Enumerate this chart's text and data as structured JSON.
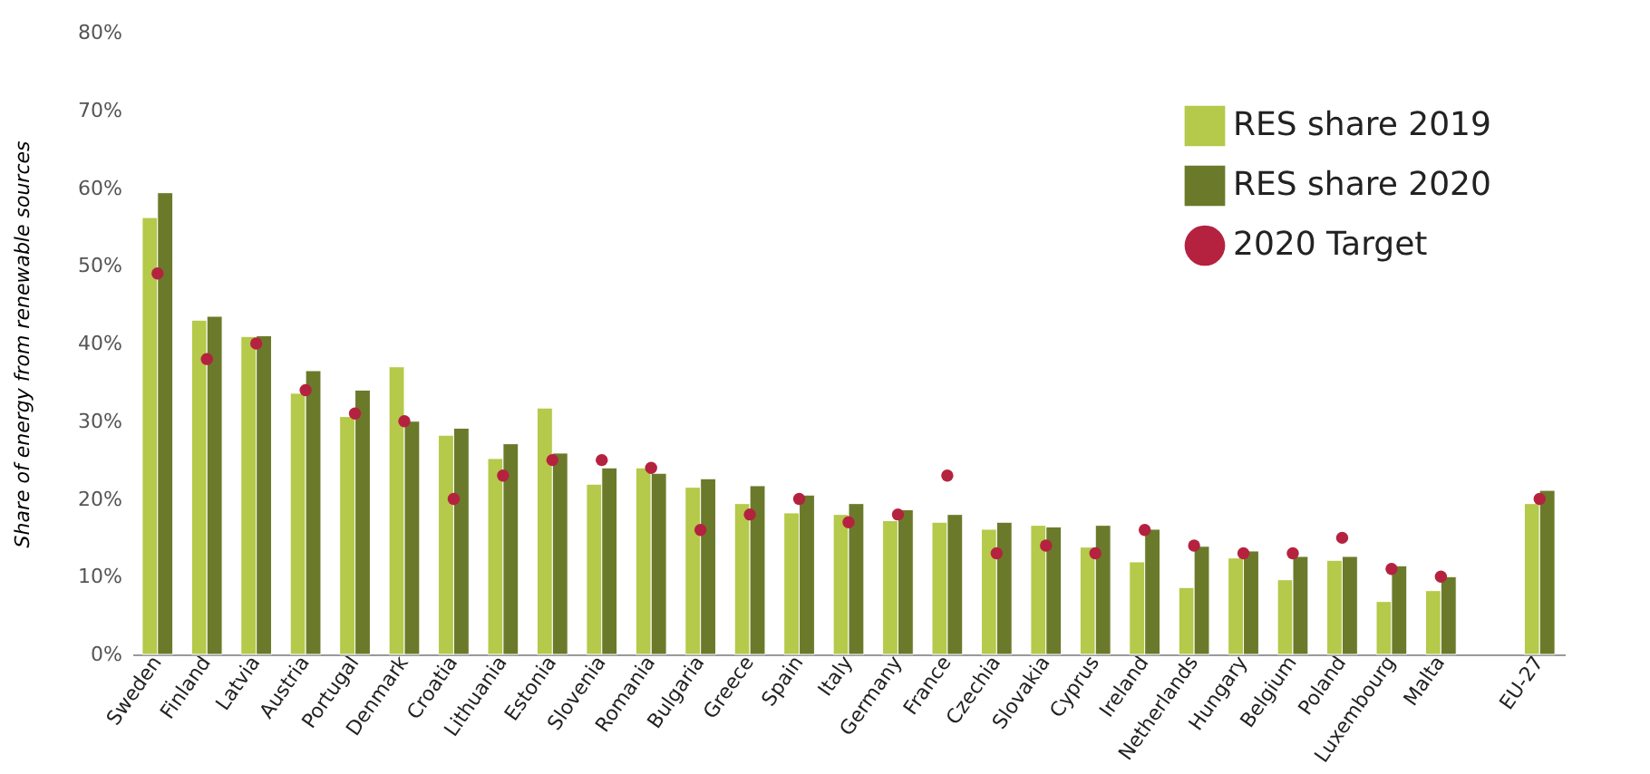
{
  "chart_data": {
    "type": "bar",
    "ylabel": "Share of energy from renewable sources",
    "categories": [
      "Sweden",
      "Finland",
      "Latvia",
      "Austria",
      "Portugal",
      "Denmark",
      "Croatia",
      "Lithuania",
      "Estonia",
      "Slovenia",
      "Romania",
      "Bulgaria",
      "Greece",
      "Spain",
      "Italy",
      "Germany",
      "France",
      "Czechia",
      "Slovakia",
      "Cyprus",
      "Ireland",
      "Netherlands",
      "Hungary",
      "Belgium",
      "Poland",
      "Luxembourg",
      "Malta",
      null,
      "EU-27"
    ],
    "series": [
      {
        "name": "RES share 2019",
        "color": "#b5c94a",
        "values": [
          56.2,
          43.0,
          40.9,
          33.6,
          30.6,
          37.0,
          28.2,
          25.2,
          31.7,
          21.9,
          24.0,
          21.5,
          19.4,
          18.2,
          18.0,
          17.2,
          17.0,
          16.1,
          16.6,
          13.8,
          11.9,
          8.6,
          12.4,
          9.6,
          12.1,
          6.8,
          8.2,
          null,
          19.4
        ]
      },
      {
        "name": "RES share 2020",
        "color": "#6b7a2a",
        "values": [
          59.4,
          43.5,
          41.0,
          36.5,
          34.0,
          30.0,
          29.1,
          27.1,
          25.9,
          24.0,
          23.3,
          22.6,
          21.7,
          20.5,
          19.4,
          18.6,
          18.0,
          17.0,
          16.4,
          16.6,
          16.1,
          13.9,
          13.3,
          12.6,
          12.6,
          11.4,
          10.0,
          null,
          21.1
        ]
      },
      {
        "name": "2020 Target",
        "type": "scatter",
        "color": "#b5223f",
        "values": [
          49,
          38,
          40,
          34,
          31,
          30,
          20,
          23,
          25,
          25,
          24,
          16,
          18,
          20,
          17,
          18,
          23,
          13,
          14,
          13,
          16,
          14,
          13,
          13,
          15,
          11,
          10,
          null,
          20
        ]
      }
    ],
    "ylim": [
      0,
      80
    ],
    "yticks": [
      {
        "value": 0,
        "label": "0%"
      },
      {
        "value": 10,
        "label": "10%"
      },
      {
        "value": 20,
        "label": "20%"
      },
      {
        "value": 30,
        "label": "30%"
      },
      {
        "value": 40,
        "label": "40%"
      },
      {
        "value": 50,
        "label": "50%"
      },
      {
        "value": 60,
        "label": "60%"
      },
      {
        "value": 70,
        "label": "70%"
      },
      {
        "value": 80,
        "label": "80%"
      }
    ],
    "grid": false,
    "legend": "top right",
    "marker": "circle"
  }
}
